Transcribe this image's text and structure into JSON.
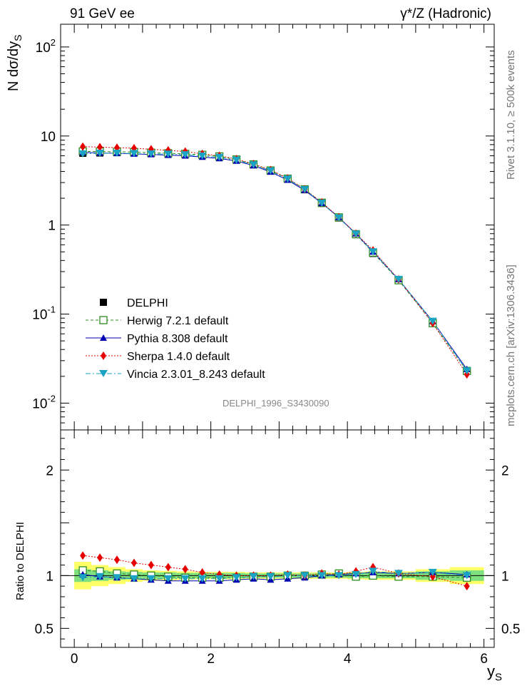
{
  "header": {
    "left": "91 GeV ee",
    "right": "γ*/Z (Hadronic)"
  },
  "side_labels": {
    "rivet": "Rivet 3.1.10, ≥ 500k events",
    "mcplots": "mcplots.cern.ch [arXiv:1306.3436]"
  },
  "watermark": "DELPHI_1996_S3430090",
  "colors": {
    "data": "#000000",
    "herwig": "#2e8b1f",
    "pythia": "#0000b3",
    "sherpa": "#e60000",
    "vincia": "#1aa3c4",
    "band_inner": "#7fe07f",
    "band_outer": "#ffff66"
  },
  "chart_data": [
    {
      "type": "scatter",
      "title": "",
      "ylabel_main": "N dσ/dy",
      "ylabel_sub": "S",
      "xlabel_main": "y",
      "xlabel_sub": "S",
      "yscale": "log",
      "ylim": [
        0.005,
        180
      ],
      "xlim": [
        -0.2,
        6.15
      ],
      "ytick_labels": [
        "10^-2",
        "10^-1",
        "1",
        "10",
        "10^2"
      ],
      "x": [
        0.125,
        0.375,
        0.625,
        0.875,
        1.125,
        1.375,
        1.625,
        1.875,
        2.125,
        2.375,
        2.625,
        2.875,
        3.125,
        3.375,
        3.625,
        3.875,
        4.125,
        4.375,
        4.75,
        5.25,
        5.75
      ],
      "series": [
        {
          "name": "DELPHI",
          "key": "data",
          "values": [
            6.4,
            6.45,
            6.5,
            6.5,
            6.45,
            6.4,
            6.3,
            6.1,
            5.9,
            5.45,
            4.8,
            4.1,
            3.3,
            2.5,
            1.75,
            1.2,
            0.78,
            0.48,
            0.24,
            0.08,
            0.023
          ]
        },
        {
          "name": "Herwig 7.2.1 default",
          "key": "herwig",
          "values": [
            6.7,
            6.7,
            6.65,
            6.6,
            6.5,
            6.4,
            6.3,
            6.15,
            5.9,
            5.45,
            4.8,
            4.1,
            3.32,
            2.52,
            1.78,
            1.22,
            0.79,
            0.49,
            0.24,
            0.079,
            0.023
          ]
        },
        {
          "name": "Pythia 8.308 default",
          "key": "pythia",
          "values": [
            6.55,
            6.45,
            6.4,
            6.3,
            6.2,
            6.1,
            6.0,
            5.8,
            5.6,
            5.25,
            4.65,
            3.95,
            3.2,
            2.45,
            1.76,
            1.22,
            0.8,
            0.5,
            0.245,
            0.083,
            0.024
          ]
        },
        {
          "name": "Sherpa 1.4.0 default",
          "key": "sherpa",
          "values": [
            7.6,
            7.5,
            7.4,
            7.3,
            7.1,
            6.9,
            6.7,
            6.3,
            6.0,
            5.5,
            4.85,
            4.15,
            3.35,
            2.52,
            1.8,
            1.22,
            0.8,
            0.52,
            0.245,
            0.079,
            0.021
          ]
        },
        {
          "name": "Vincia 2.3.01_8.243 default",
          "key": "vincia",
          "values": [
            6.3,
            6.4,
            6.4,
            6.35,
            6.3,
            6.25,
            6.15,
            5.95,
            5.75,
            5.35,
            4.75,
            4.05,
            3.28,
            2.5,
            1.76,
            1.2,
            0.79,
            0.5,
            0.245,
            0.083,
            0.023
          ]
        }
      ]
    },
    {
      "type": "scatter",
      "title": "",
      "ylabel": "Ratio to DELPHI",
      "xlabel_main": "y",
      "xlabel_sub": "S",
      "ylim": [
        0.32,
        2.38
      ],
      "xlim": [
        -0.2,
        6.15
      ],
      "ytick_labels": [
        "0.5",
        "1",
        "2"
      ],
      "xtick_labels": [
        "0",
        "2",
        "4",
        "6"
      ],
      "x": [
        0.125,
        0.375,
        0.625,
        0.875,
        1.125,
        1.375,
        1.625,
        1.875,
        2.125,
        2.375,
        2.625,
        2.875,
        3.125,
        3.375,
        3.625,
        3.875,
        4.125,
        4.375,
        4.75,
        5.25,
        5.75
      ],
      "band_inner_halfwidth": [
        0.06,
        0.05,
        0.04,
        0.035,
        0.03,
        0.03,
        0.025,
        0.025,
        0.025,
        0.025,
        0.02,
        0.02,
        0.02,
        0.02,
        0.02,
        0.02,
        0.025,
        0.025,
        0.025,
        0.04,
        0.05
      ],
      "band_outer_halfwidth": [
        0.13,
        0.1,
        0.08,
        0.06,
        0.05,
        0.045,
        0.04,
        0.035,
        0.035,
        0.035,
        0.03,
        0.03,
        0.03,
        0.03,
        0.03,
        0.03,
        0.035,
        0.04,
        0.04,
        0.06,
        0.08
      ],
      "series": [
        {
          "name": "Herwig 7.2.1 default",
          "key": "herwig",
          "values": [
            1.05,
            1.04,
            1.02,
            1.01,
            1.0,
            0.99,
            0.98,
            0.98,
            0.98,
            0.98,
            0.99,
            0.99,
            1.0,
            1.0,
            1.01,
            1.02,
            0.99,
            1.0,
            0.99,
            0.99,
            0.98
          ]
        },
        {
          "name": "Pythia 8.308 default",
          "key": "pythia",
          "values": [
            1.01,
            0.99,
            0.98,
            0.97,
            0.96,
            0.95,
            0.95,
            0.95,
            0.95,
            0.96,
            0.97,
            0.96,
            0.97,
            0.98,
            1.0,
            1.01,
            1.02,
            1.03,
            1.02,
            1.03,
            1.01
          ]
        },
        {
          "name": "Sherpa 1.4.0 default",
          "key": "sherpa",
          "values": [
            1.19,
            1.17,
            1.15,
            1.12,
            1.1,
            1.08,
            1.06,
            1.03,
            1.01,
            1.0,
            1.0,
            1.0,
            1.01,
            1.0,
            1.02,
            1.01,
            1.04,
            1.08,
            1.02,
            0.99,
            0.9
          ]
        },
        {
          "name": "Vincia 2.3.01_8.243 default",
          "key": "vincia",
          "values": [
            0.98,
            0.99,
            0.98,
            0.97,
            0.97,
            0.97,
            0.97,
            0.97,
            0.97,
            0.98,
            0.99,
            0.99,
            1.0,
            1.0,
            1.0,
            1.0,
            1.01,
            1.04,
            1.02,
            1.03,
            1.0
          ]
        }
      ]
    }
  ]
}
